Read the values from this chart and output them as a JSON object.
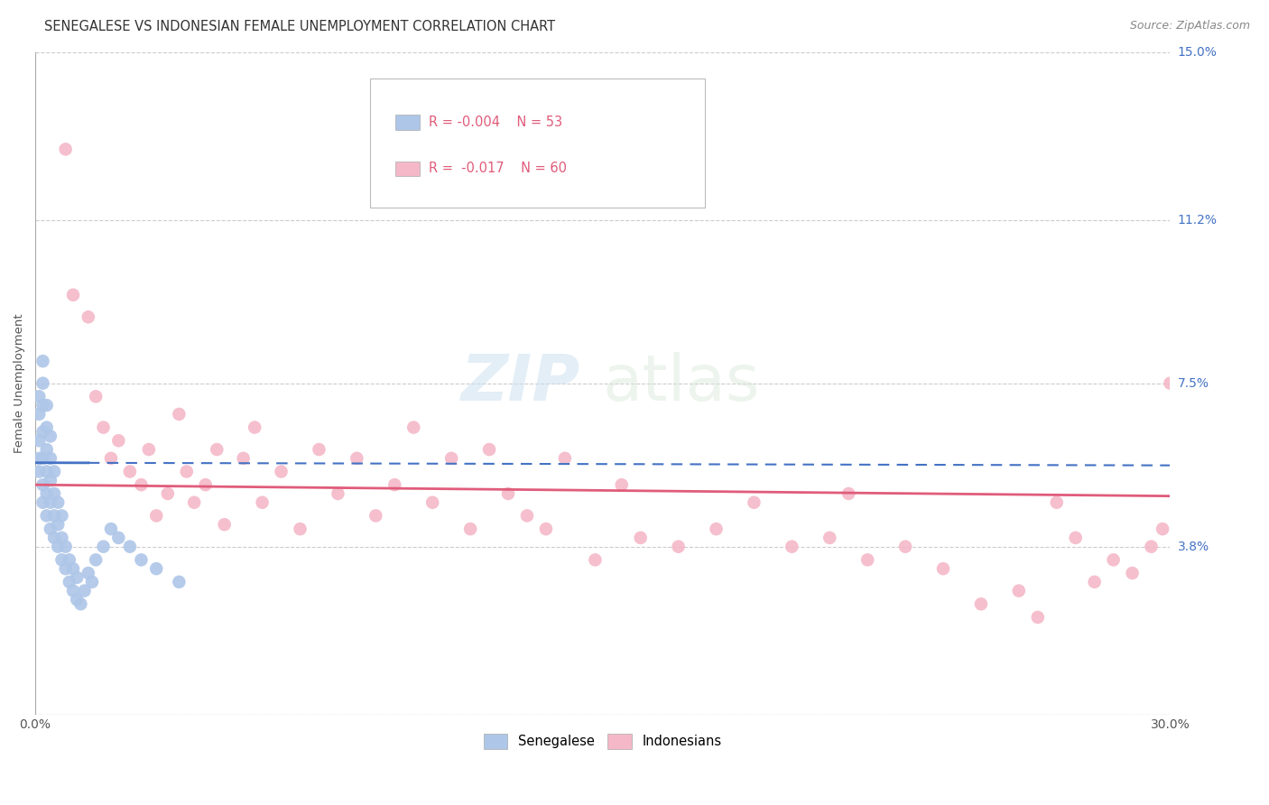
{
  "title": "SENEGALESE VS INDONESIAN FEMALE UNEMPLOYMENT CORRELATION CHART",
  "source": "Source: ZipAtlas.com",
  "ylabel": "Female Unemployment",
  "watermark_zip": "ZIP",
  "watermark_atlas": "atlas",
  "x_min": 0.0,
  "x_max": 0.3,
  "y_min": 0.0,
  "y_max": 0.15,
  "y_ticks": [
    0.0,
    0.038,
    0.075,
    0.112,
    0.15
  ],
  "y_tick_labels": [
    "",
    "3.8%",
    "7.5%",
    "11.2%",
    "15.0%"
  ],
  "grid_color": "#cccccc",
  "background_color": "#ffffff",
  "senegalese_color": "#aec6e8",
  "indonesian_color": "#f4b8c8",
  "senegalese_line_color": "#4472c4",
  "indonesian_line_color": "#e05c7a",
  "legend_label_color": "#e05c7a",
  "ytick_color": "#4472c4",
  "title_color": "#333333",
  "source_color": "#888888",
  "title_fontsize": 10.5,
  "label_fontsize": 9.5,
  "tick_fontsize": 10,
  "source_fontsize": 9,
  "legend_R1": "R = -0.004",
  "legend_N1": "N = 53",
  "legend_R2": "R =  -0.017",
  "legend_N2": "N = 60",
  "sen_x": [
    0.001,
    0.001,
    0.001,
    0.001,
    0.001,
    0.002,
    0.002,
    0.002,
    0.002,
    0.002,
    0.002,
    0.002,
    0.003,
    0.003,
    0.003,
    0.003,
    0.003,
    0.003,
    0.004,
    0.004,
    0.004,
    0.004,
    0.004,
    0.005,
    0.005,
    0.005,
    0.005,
    0.006,
    0.006,
    0.006,
    0.007,
    0.007,
    0.007,
    0.008,
    0.008,
    0.009,
    0.009,
    0.01,
    0.01,
    0.011,
    0.011,
    0.012,
    0.013,
    0.014,
    0.015,
    0.016,
    0.018,
    0.02,
    0.022,
    0.025,
    0.028,
    0.032,
    0.038
  ],
  "sen_y": [
    0.058,
    0.062,
    0.068,
    0.072,
    0.055,
    0.048,
    0.052,
    0.058,
    0.064,
    0.07,
    0.075,
    0.08,
    0.045,
    0.05,
    0.055,
    0.06,
    0.065,
    0.07,
    0.042,
    0.048,
    0.053,
    0.058,
    0.063,
    0.04,
    0.045,
    0.05,
    0.055,
    0.038,
    0.043,
    0.048,
    0.035,
    0.04,
    0.045,
    0.033,
    0.038,
    0.03,
    0.035,
    0.028,
    0.033,
    0.026,
    0.031,
    0.025,
    0.028,
    0.032,
    0.03,
    0.035,
    0.038,
    0.042,
    0.04,
    0.038,
    0.035,
    0.033,
    0.03
  ],
  "ind_x": [
    0.008,
    0.01,
    0.014,
    0.016,
    0.018,
    0.02,
    0.022,
    0.025,
    0.028,
    0.03,
    0.032,
    0.035,
    0.038,
    0.04,
    0.042,
    0.045,
    0.048,
    0.05,
    0.055,
    0.058,
    0.06,
    0.065,
    0.07,
    0.075,
    0.08,
    0.085,
    0.09,
    0.095,
    0.1,
    0.105,
    0.11,
    0.115,
    0.12,
    0.125,
    0.13,
    0.135,
    0.14,
    0.148,
    0.155,
    0.16,
    0.17,
    0.18,
    0.19,
    0.2,
    0.21,
    0.215,
    0.22,
    0.23,
    0.24,
    0.25,
    0.26,
    0.265,
    0.27,
    0.275,
    0.28,
    0.285,
    0.29,
    0.295,
    0.298,
    0.3
  ],
  "ind_y": [
    0.128,
    0.095,
    0.09,
    0.072,
    0.065,
    0.058,
    0.062,
    0.055,
    0.052,
    0.06,
    0.045,
    0.05,
    0.068,
    0.055,
    0.048,
    0.052,
    0.06,
    0.043,
    0.058,
    0.065,
    0.048,
    0.055,
    0.042,
    0.06,
    0.05,
    0.058,
    0.045,
    0.052,
    0.065,
    0.048,
    0.058,
    0.042,
    0.06,
    0.05,
    0.045,
    0.042,
    0.058,
    0.035,
    0.052,
    0.04,
    0.038,
    0.042,
    0.048,
    0.038,
    0.04,
    0.05,
    0.035,
    0.038,
    0.033,
    0.025,
    0.028,
    0.022,
    0.048,
    0.04,
    0.03,
    0.035,
    0.032,
    0.038,
    0.042,
    0.075
  ]
}
